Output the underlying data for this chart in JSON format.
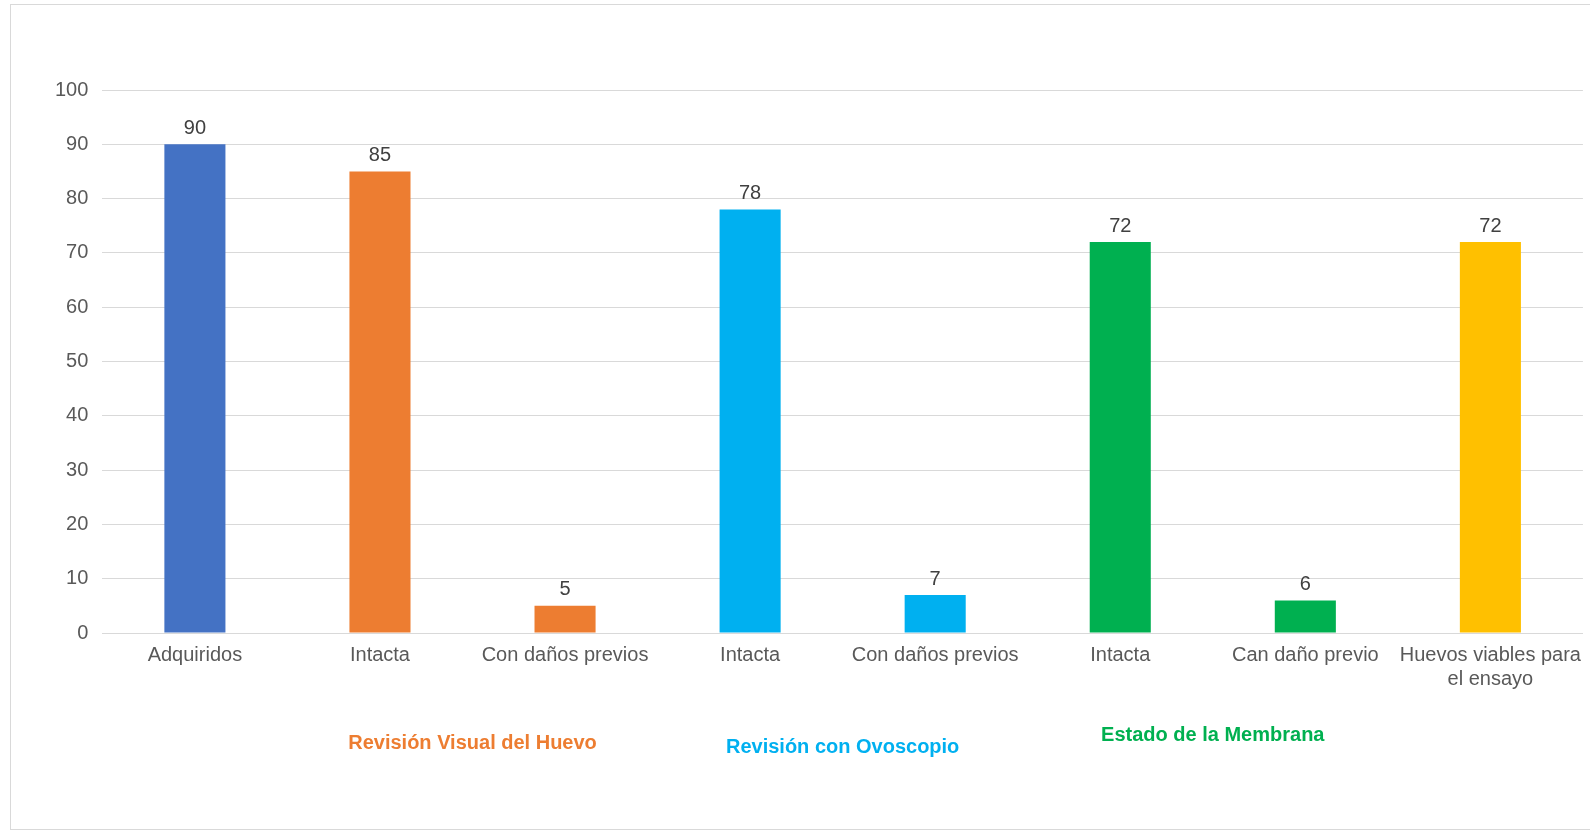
{
  "chart_data": {
    "type": "bar",
    "categories": [
      "Adquiridos",
      "Intacta",
      "Con daños previos",
      "Intacta",
      "Con daños previos",
      "Intacta",
      "Can daño previo",
      "Huevos viables para el ensayo"
    ],
    "values": [
      90,
      85,
      5,
      78,
      7,
      72,
      6,
      72
    ],
    "colors": [
      "#4472c4",
      "#ed7d31",
      "#ed7d31",
      "#00b0f0",
      "#00b0f0",
      "#00b050",
      "#00b050",
      "#ffc000"
    ],
    "ylim": [
      0,
      100
    ],
    "yticks": [
      0,
      10,
      20,
      30,
      40,
      50,
      60,
      70,
      80,
      90,
      100
    ],
    "grid": "y",
    "legend": false,
    "data_labels": true,
    "annotations": [
      "Revisión Visual del Huevo",
      "Revisión con Ovoscopio",
      "Estado de la Membrana"
    ]
  }
}
